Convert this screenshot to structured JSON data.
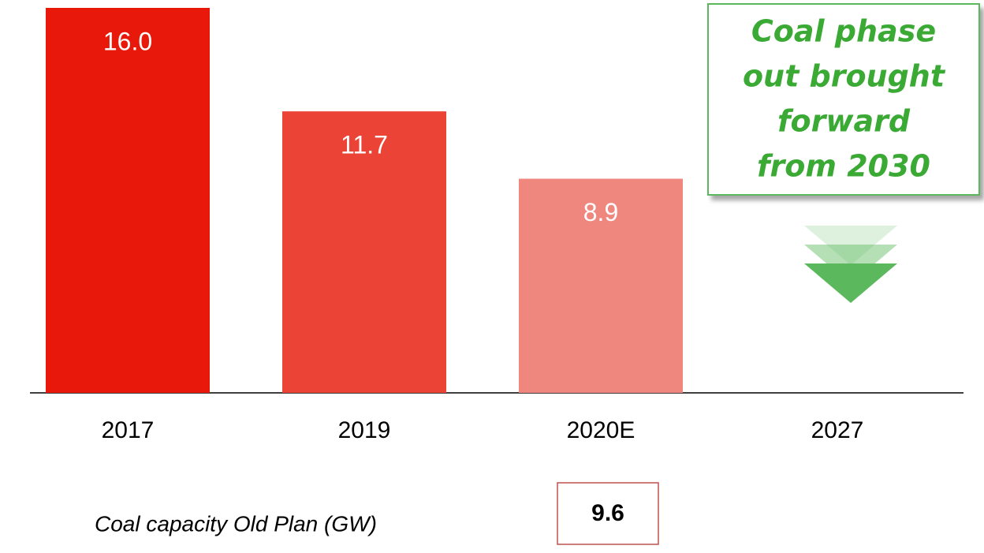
{
  "chart_data": {
    "type": "bar",
    "categories": [
      "2017",
      "2019",
      "2020E",
      "2027"
    ],
    "values": [
      16.0,
      11.7,
      8.9,
      null
    ],
    "value_labels": [
      "16.0",
      "11.7",
      "8.9",
      null
    ],
    "colors": [
      "#e8180a",
      "#eb4436",
      "#f0877f",
      null
    ],
    "annotation": [
      "Coal phase",
      "out brought",
      "forward",
      "from 2030"
    ],
    "footnote": {
      "label": "Coal capacity Old Plan (GW)",
      "value": 9.6
    }
  }
}
